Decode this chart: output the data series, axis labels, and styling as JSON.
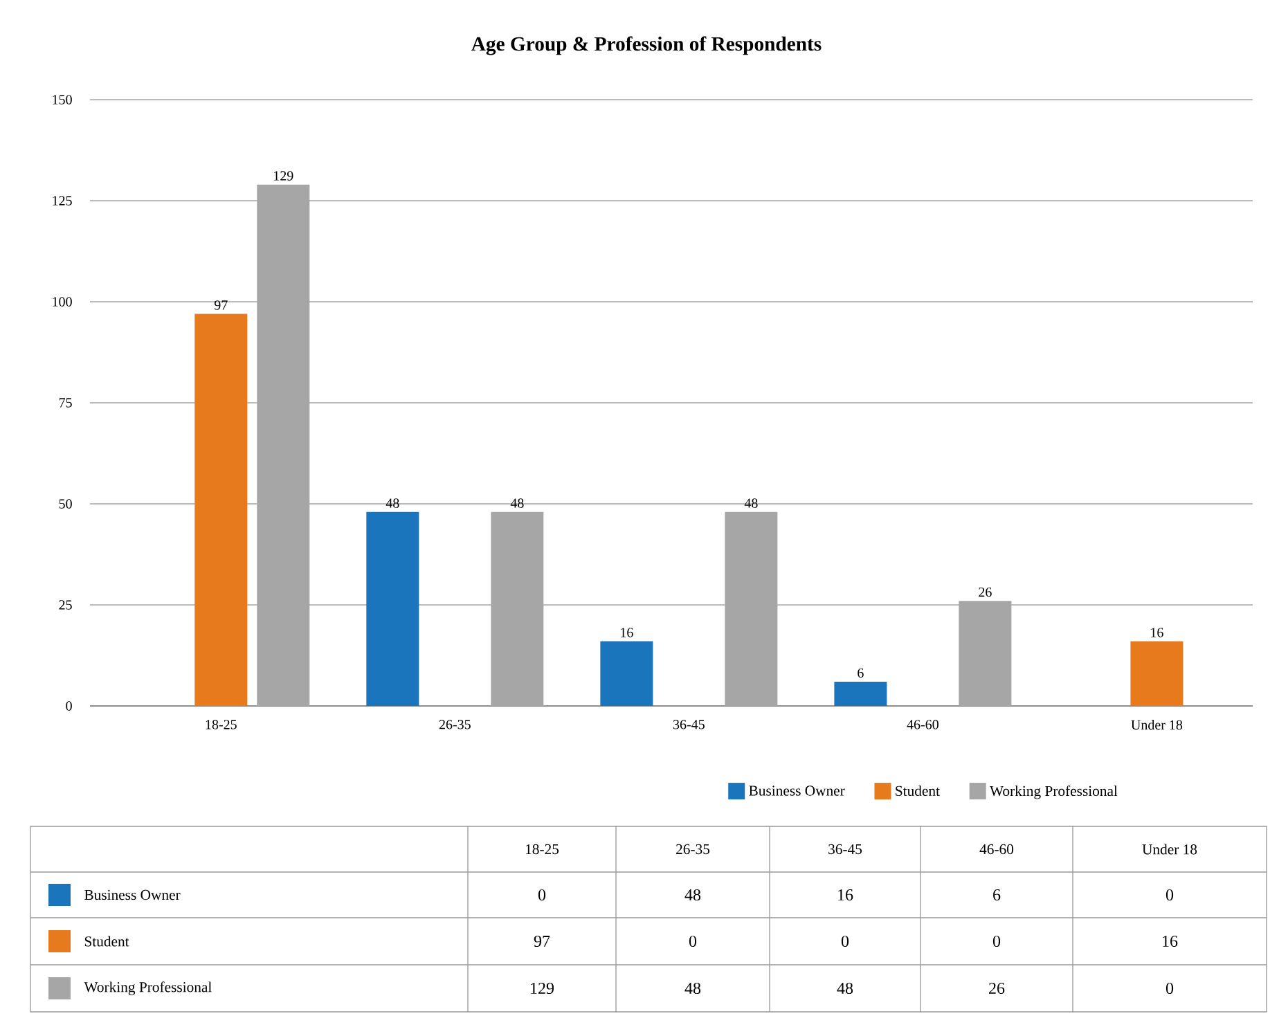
{
  "chart_data": {
    "type": "bar",
    "title": "Age Group & Profession of Respondents",
    "categories": [
      "18-25",
      "26-35",
      "36-45",
      "46-60",
      "Under 18"
    ],
    "series": [
      {
        "name": "Business Owner",
        "color": "#1a75bc",
        "values": [
          0,
          48,
          16,
          6,
          0
        ],
        "value_labels": [
          null,
          "48",
          "16",
          "6",
          null
        ]
      },
      {
        "name": "Student",
        "color": "#e87a1e",
        "values": [
          97,
          0,
          0,
          0,
          16
        ],
        "value_labels": [
          "97",
          null,
          null,
          null,
          "16"
        ]
      },
      {
        "name": "Working Professional",
        "color": "#a6a6a6",
        "values": [
          129,
          48,
          48,
          26,
          0
        ],
        "value_labels": [
          "129",
          "48",
          "48",
          "26",
          null
        ]
      }
    ],
    "annotations": [
      "0",
      "48",
      "16",
      "6",
      "0",
      "97",
      "0",
      "0",
      "0",
      "16",
      "129",
      "48",
      "48",
      "26",
      "0"
    ],
    "ylim": [
      0,
      150
    ],
    "yticks": [
      0,
      25,
      50,
      75,
      100,
      125,
      150
    ],
    "grid": "y",
    "legend": "bottom"
  }
}
